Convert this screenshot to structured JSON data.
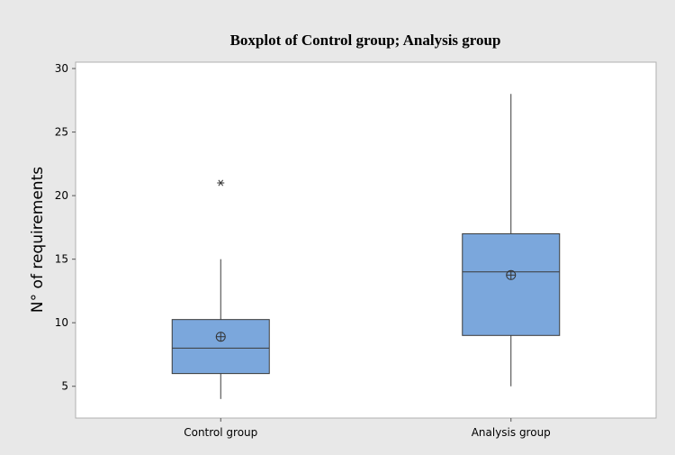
{
  "chart_data": {
    "type": "boxplot",
    "title": "Boxplot of Control group; Analysis group",
    "xlabel": "",
    "ylabel": "N° of requirements",
    "categories": [
      "Control group",
      "Analysis group"
    ],
    "ylim": [
      2.5,
      30.5
    ],
    "yticks": [
      5,
      10,
      15,
      20,
      25,
      30
    ],
    "grid": false,
    "legend": "none",
    "colors": {
      "outer_background": "#e8e8e8",
      "plot_background": "#ffffff",
      "box_fill": "#7ba7dc",
      "box_stroke": "#3a3a3a"
    },
    "boxes": [
      {
        "name": "Control group",
        "whisker_low": 4,
        "q1": 6,
        "median": 8,
        "q3": 10.25,
        "whisker_high": 15,
        "mean": 8.9,
        "outliers": [
          21
        ]
      },
      {
        "name": "Analysis group",
        "whisker_low": 5,
        "q1": 9,
        "median": 14,
        "q3": 17,
        "whisker_high": 28,
        "mean": 13.75,
        "outliers": []
      }
    ]
  }
}
